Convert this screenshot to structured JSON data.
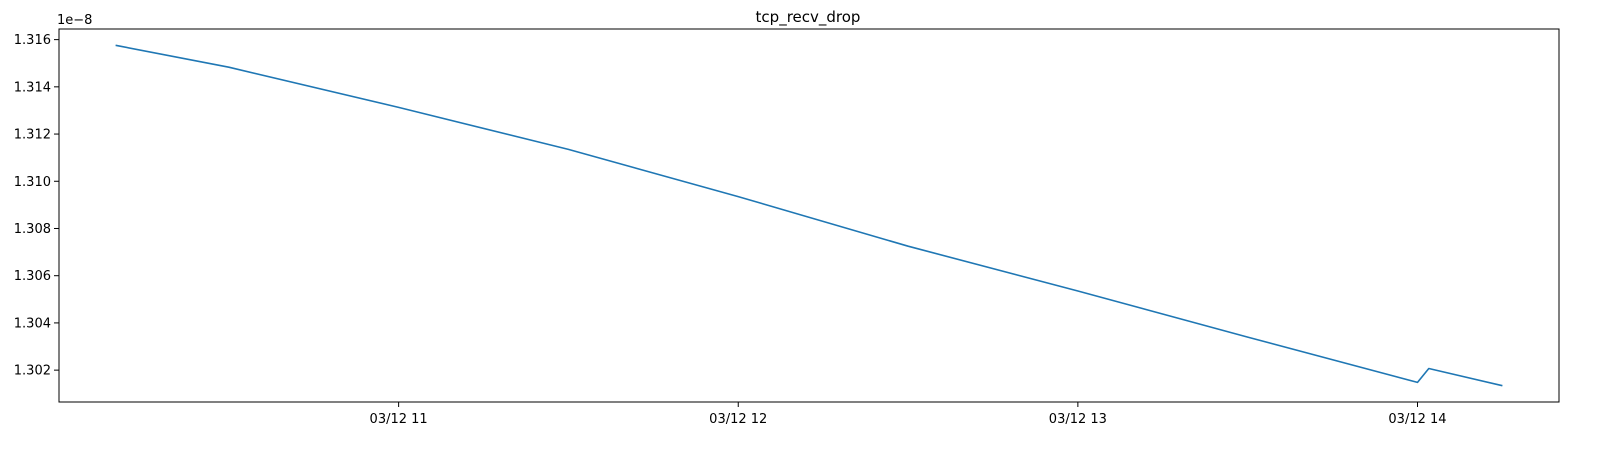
{
  "chart_data": {
    "type": "line",
    "title": "tcp_recv_drop",
    "xlabel": "",
    "ylabel": "",
    "y_offset_label": "1e−8",
    "y_scale_exponent": -8,
    "x_axis_type": "datetime",
    "xlim": [
      "2024-03-12 10:00",
      "2024-03-12 14:25"
    ],
    "ylim": [
      1.30065,
      1.31645
    ],
    "x_ticks": [
      {
        "x": "2024-03-12 11:00",
        "label": "03/12 11"
      },
      {
        "x": "2024-03-12 12:00",
        "label": "03/12 12"
      },
      {
        "x": "2024-03-12 13:00",
        "label": "03/12 13"
      },
      {
        "x": "2024-03-12 14:00",
        "label": "03/12 14"
      }
    ],
    "y_ticks": [
      {
        "y": 1.302,
        "label": "1.302"
      },
      {
        "y": 1.304,
        "label": "1.304"
      },
      {
        "y": 1.306,
        "label": "1.306"
      },
      {
        "y": 1.308,
        "label": "1.308"
      },
      {
        "y": 1.31,
        "label": "1.310"
      },
      {
        "y": 1.312,
        "label": "1.312"
      },
      {
        "y": 1.314,
        "label": "1.314"
      },
      {
        "y": 1.316,
        "label": "1.316"
      }
    ],
    "grid": false,
    "legend": "none",
    "series": [
      {
        "color": "#1f77b4",
        "points": [
          {
            "x": "2024-03-12 10:10",
            "y": 1.31576
          },
          {
            "x": "2024-03-12 10:30",
            "y": 1.31483
          },
          {
            "x": "2024-03-12 11:00",
            "y": 1.31313
          },
          {
            "x": "2024-03-12 11:30",
            "y": 1.31135
          },
          {
            "x": "2024-03-12 12:00",
            "y": 1.30935
          },
          {
            "x": "2024-03-12 12:30",
            "y": 1.30725
          },
          {
            "x": "2024-03-12 13:00",
            "y": 1.30535
          },
          {
            "x": "2024-03-12 13:30",
            "y": 1.3034
          },
          {
            "x": "2024-03-12 14:00",
            "y": 1.30148
          },
          {
            "x": "2024-03-12 14:02",
            "y": 1.30207
          },
          {
            "x": "2024-03-12 14:15",
            "y": 1.30134
          }
        ]
      }
    ]
  }
}
